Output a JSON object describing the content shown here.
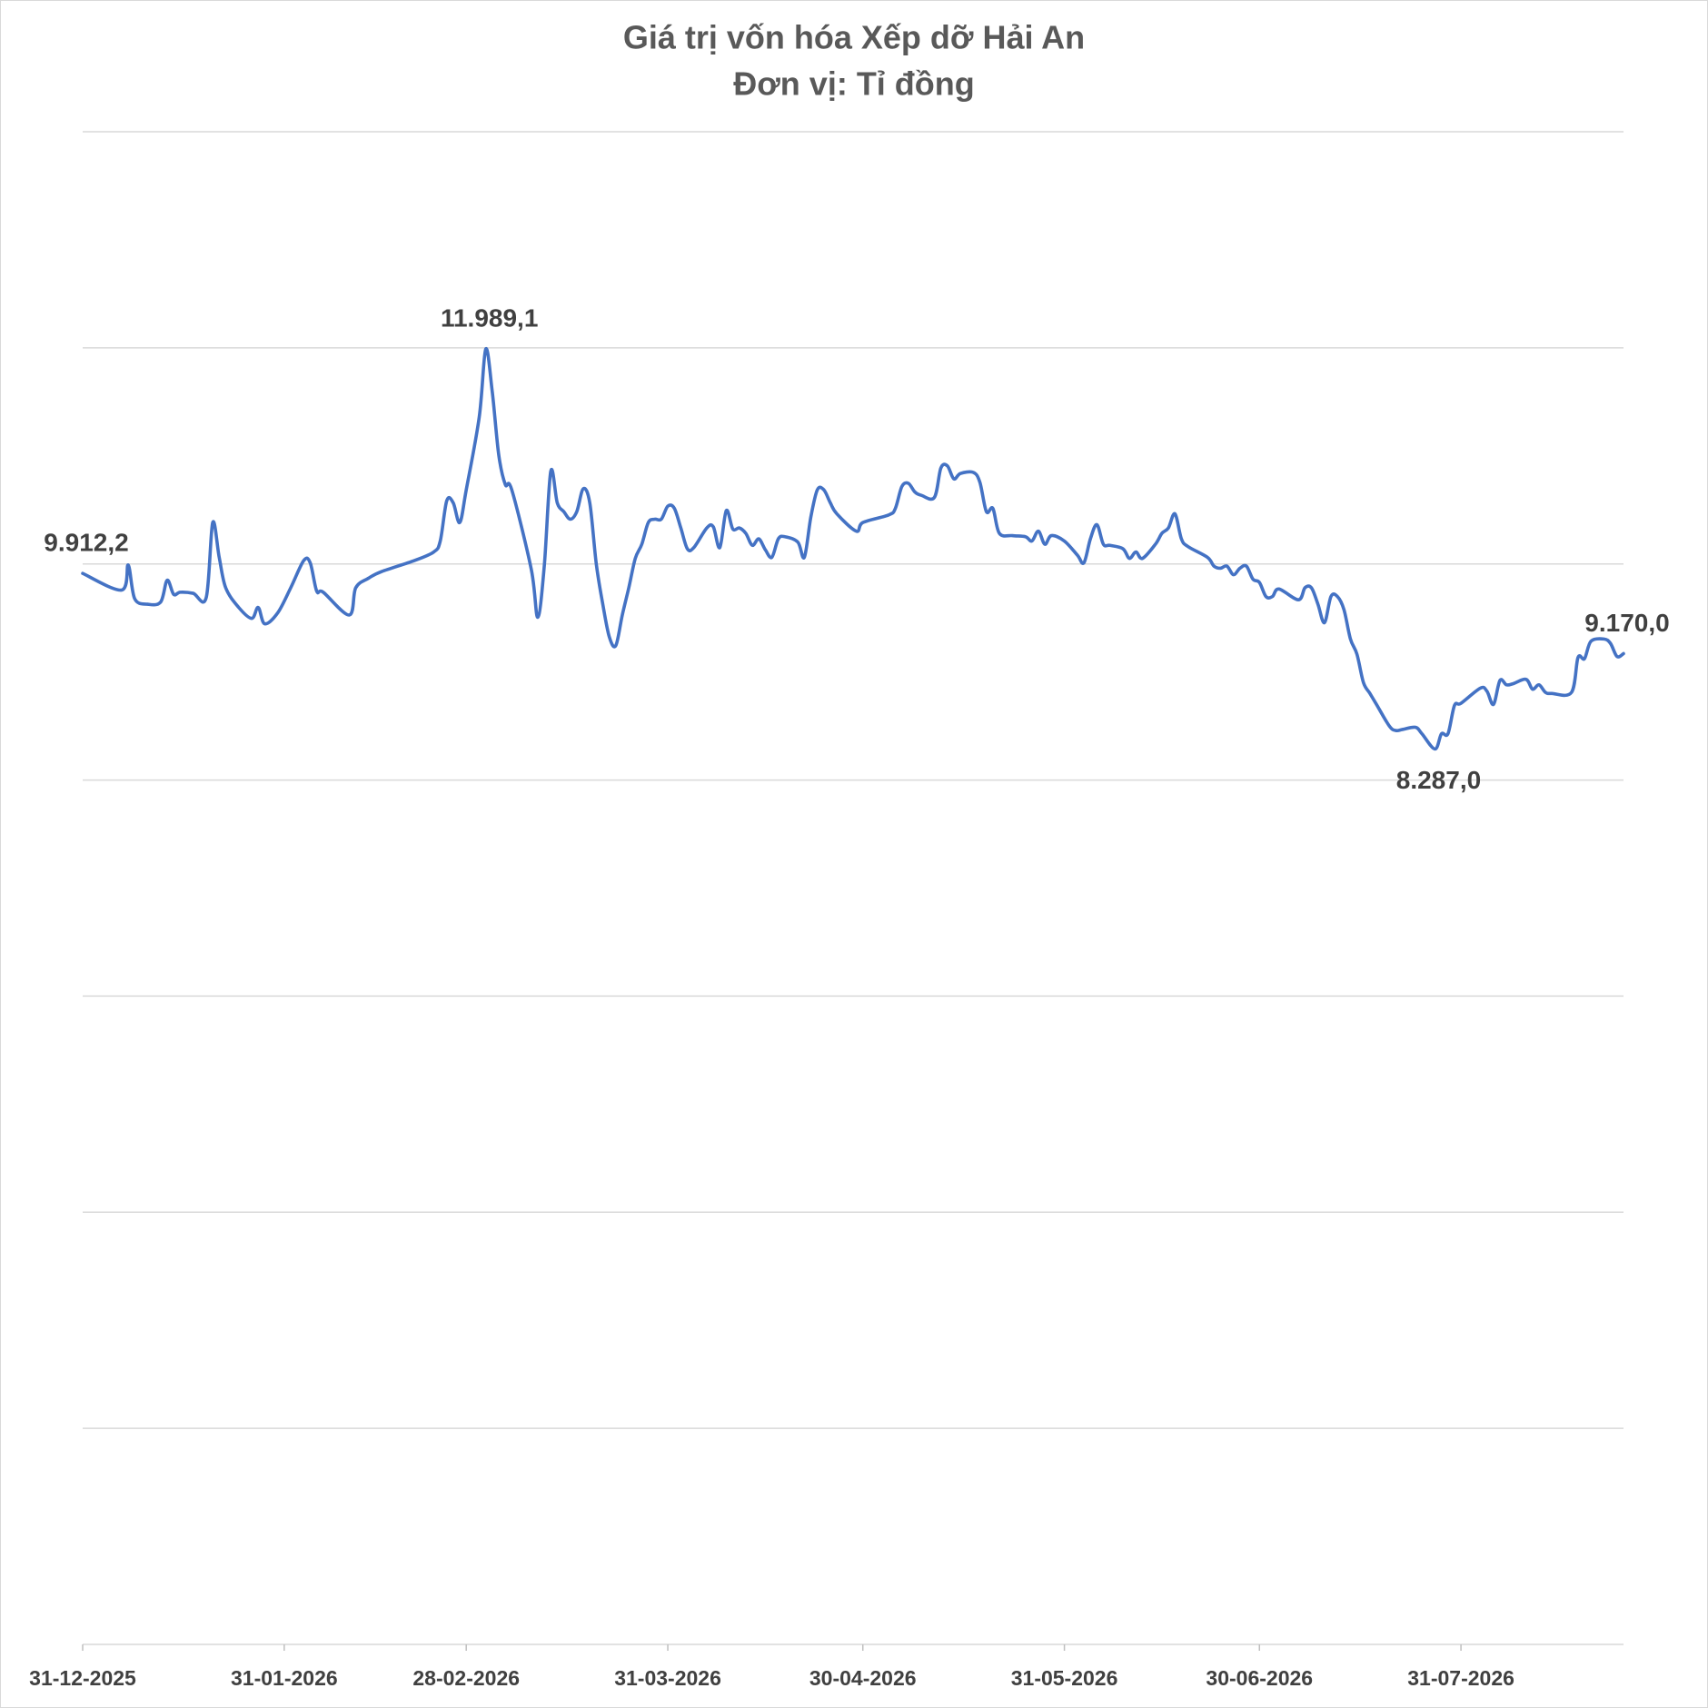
{
  "chart_data": {
    "type": "line",
    "title": "Giá trị vốn hóa Xếp dỡ Hải An",
    "subtitle": "Đơn vị: Tỉ đồng",
    "x": [
      "2025-12-31",
      "2026-01-06",
      "2026-01-07",
      "2026-01-08",
      "2026-01-10",
      "2026-01-12",
      "2026-01-13",
      "2026-01-14",
      "2026-01-15",
      "2026-01-17",
      "2026-01-19",
      "2026-01-20",
      "2026-01-21",
      "2026-01-22",
      "2026-01-24",
      "2026-01-26",
      "2026-01-27",
      "2026-01-28",
      "2026-01-30",
      "2026-02-01",
      "2026-02-03",
      "2026-02-04",
      "2026-02-05",
      "2026-02-06",
      "2026-02-10",
      "2026-02-11",
      "2026-02-13",
      "2026-02-15",
      "2026-02-20",
      "2026-02-23",
      "2026-02-24",
      "2026-02-25",
      "2026-02-26",
      "2026-02-27",
      "2026-02-28",
      "2026-03-02",
      "2026-03-03",
      "2026-03-04",
      "2026-03-05",
      "2026-03-06",
      "2026-03-07",
      "2026-03-10",
      "2026-03-11",
      "2026-03-12",
      "2026-03-13",
      "2026-03-14",
      "2026-03-15",
      "2026-03-16",
      "2026-03-17",
      "2026-03-18",
      "2026-03-19",
      "2026-03-20",
      "2026-03-21",
      "2026-03-22",
      "2026-03-23",
      "2026-03-24",
      "2026-03-25",
      "2026-03-26",
      "2026-03-27",
      "2026-03-28",
      "2026-03-29",
      "2026-03-30",
      "2026-03-31",
      "2026-04-01",
      "2026-04-02",
      "2026-04-03",
      "2026-04-04",
      "2026-04-06",
      "2026-04-07",
      "2026-04-08",
      "2026-04-09",
      "2026-04-10",
      "2026-04-11",
      "2026-04-12",
      "2026-04-13",
      "2026-04-14",
      "2026-04-15",
      "2026-04-16",
      "2026-04-17",
      "2026-04-18",
      "2026-04-20",
      "2026-04-21",
      "2026-04-22",
      "2026-04-23",
      "2026-04-24",
      "2026-04-25",
      "2026-04-26",
      "2026-04-29",
      "2026-04-30",
      "2026-05-04",
      "2026-05-05",
      "2026-05-06",
      "2026-05-07",
      "2026-05-08",
      "2026-05-09",
      "2026-05-11",
      "2026-05-12",
      "2026-05-13",
      "2026-05-14",
      "2026-05-15",
      "2026-05-17",
      "2026-05-18",
      "2026-05-19",
      "2026-05-20",
      "2026-05-21",
      "2026-05-23",
      "2026-05-25",
      "2026-05-26",
      "2026-05-27",
      "2026-05-28",
      "2026-05-29",
      "2026-05-31",
      "2026-06-02",
      "2026-06-03",
      "2026-06-04",
      "2026-06-05",
      "2026-06-06",
      "2026-06-07",
      "2026-06-09",
      "2026-06-10",
      "2026-06-11",
      "2026-06-12",
      "2026-06-14",
      "2026-06-15",
      "2026-06-16",
      "2026-06-17",
      "2026-06-18",
      "2026-06-19",
      "2026-06-22",
      "2026-06-23",
      "2026-06-24",
      "2026-06-25",
      "2026-06-26",
      "2026-06-27",
      "2026-06-28",
      "2026-06-29",
      "2026-06-30",
      "2026-07-01",
      "2026-07-02",
      "2026-07-03",
      "2026-07-06",
      "2026-07-07",
      "2026-07-08",
      "2026-07-09",
      "2026-07-10",
      "2026-07-11",
      "2026-07-12",
      "2026-07-13",
      "2026-07-14",
      "2026-07-15",
      "2026-07-16",
      "2026-07-17",
      "2026-07-18",
      "2026-07-20",
      "2026-07-21",
      "2026-07-22",
      "2026-07-24",
      "2026-07-25",
      "2026-07-27",
      "2026-07-28",
      "2026-07-29",
      "2026-07-30",
      "2026-07-31",
      "2026-08-03",
      "2026-08-04",
      "2026-08-05",
      "2026-08-06",
      "2026-08-07",
      "2026-08-08",
      "2026-08-10",
      "2026-08-11",
      "2026-08-12",
      "2026-08-13",
      "2026-08-14",
      "2026-08-17",
      "2026-08-18",
      "2026-08-19",
      "2026-08-20",
      "2026-08-22",
      "2026-08-23",
      "2026-08-24",
      "2026-08-25"
    ],
    "series": [
      {
        "color": "#4472c4",
        "values": [
          9912.2,
          9758,
          9990,
          9678,
          9627,
          9648,
          9849,
          9718,
          9738,
          9728,
          9688,
          10383,
          10061,
          9779,
          9597,
          9496,
          9597,
          9446,
          9547,
          9779,
          10031,
          10010,
          9748,
          9738,
          9527,
          9779,
          9869,
          9930,
          10031,
          10111,
          10212,
          10585,
          10565,
          10383,
          10686,
          11361,
          11989.1,
          11593,
          11008,
          10736,
          10686,
          9950,
          9506,
          9980,
          10857,
          10565,
          10484,
          10414,
          10484,
          10696,
          10565,
          10000,
          9627,
          9325,
          9244,
          9527,
          9779,
          10051,
          10182,
          10383,
          10414,
          10414,
          10535,
          10515,
          10333,
          10141,
          10151,
          10333,
          10343,
          10151,
          10494,
          10323,
          10333,
          10283,
          10172,
          10232,
          10131,
          10061,
          10232,
          10252,
          10202,
          10061,
          10434,
          10686,
          10686,
          10565,
          10464,
          10303,
          10383,
          10454,
          10514,
          10716,
          10746,
          10666,
          10635,
          10615,
          10887,
          10908,
          10787,
          10837,
          10847,
          10756,
          10484,
          10514,
          10283,
          10262,
          10252,
          10212,
          10303,
          10182,
          10262,
          10212,
          10081,
          10010,
          10232,
          10363,
          10182,
          10172,
          10141,
          10051,
          10111,
          10051,
          10182,
          10283,
          10333,
          10464,
          10232,
          10161,
          10061,
          9980,
          9960,
          9980,
          9900,
          9960,
          9980,
          9859,
          9829,
          9698,
          9698,
          9768,
          9668,
          9779,
          9779,
          9627,
          9456,
          9698,
          9698,
          9577,
          9305,
          9164,
          8902,
          8801,
          8700,
          8498,
          8458,
          8468,
          8488,
          8428,
          8287.0,
          8428,
          8428,
          8690,
          8710,
          8851,
          8821,
          8700,
          8922,
          8881,
          8891,
          8932,
          8841,
          8881,
          8811,
          8801,
          8811,
          9133,
          9123,
          9285,
          9305,
          9264,
          9143,
          9170.0
        ],
        "value_labels": [
          "9.912,2",
          null,
          null,
          null,
          null,
          null,
          null,
          null,
          null,
          null,
          null,
          null,
          null,
          null,
          null,
          null,
          null,
          null,
          null,
          null,
          null,
          null,
          null,
          null,
          null,
          null,
          null,
          null,
          null,
          null,
          null,
          null,
          null,
          null,
          null,
          null,
          "11.989,1",
          null,
          null,
          null,
          null,
          null,
          null,
          null,
          null,
          null,
          null,
          null,
          null,
          null,
          null,
          null,
          null,
          null,
          null,
          null,
          null,
          null,
          null,
          null,
          null,
          null,
          null,
          null,
          null,
          null,
          null,
          null,
          null,
          null,
          null,
          null,
          null,
          null,
          null,
          null,
          null,
          null,
          null,
          null,
          null,
          null,
          null,
          null,
          null,
          null,
          null,
          null,
          null,
          null,
          null,
          null,
          null,
          null,
          null,
          null,
          null,
          null,
          null,
          null,
          null,
          null,
          null,
          null,
          null,
          null,
          null,
          null,
          null,
          null,
          null,
          null,
          null,
          null,
          null,
          null,
          null,
          null,
          null,
          null,
          null,
          null,
          null,
          null,
          null,
          null,
          null,
          null,
          null,
          null,
          null,
          null,
          null,
          null,
          null,
          null,
          null,
          null,
          null,
          null,
          null,
          null,
          null,
          null,
          null,
          null,
          null,
          null,
          null,
          null,
          null,
          null,
          null,
          null,
          null,
          null,
          null,
          null,
          "8.287,0",
          null,
          null,
          null,
          null,
          null,
          null,
          null,
          null,
          null,
          null,
          null,
          null,
          null,
          null,
          null,
          null,
          null,
          null,
          null,
          null,
          null,
          null,
          "9.170,0"
        ]
      }
    ],
    "xlim": [
      "2025-12-31",
      "2026-08-25"
    ],
    "xticks": [
      {
        "value": "2025-12-31",
        "label": "31-12-2025"
      },
      {
        "value": "2026-01-31",
        "label": "31-01-2026"
      },
      {
        "value": "2026-02-28",
        "label": "28-02-2026"
      },
      {
        "value": "2026-03-31",
        "label": "31-03-2026"
      },
      {
        "value": "2026-04-30",
        "label": "30-04-2026"
      },
      {
        "value": "2026-05-31",
        "label": "31-05-2026"
      },
      {
        "value": "2026-06-30",
        "label": "30-06-2026"
      },
      {
        "value": "2026-07-31",
        "label": "31-07-2026"
      }
    ],
    "ylim": [
      0,
      14000
    ],
    "yticks": [
      0,
      2000,
      4000,
      6000,
      8000,
      10000,
      12000,
      14000
    ],
    "grid": true
  }
}
